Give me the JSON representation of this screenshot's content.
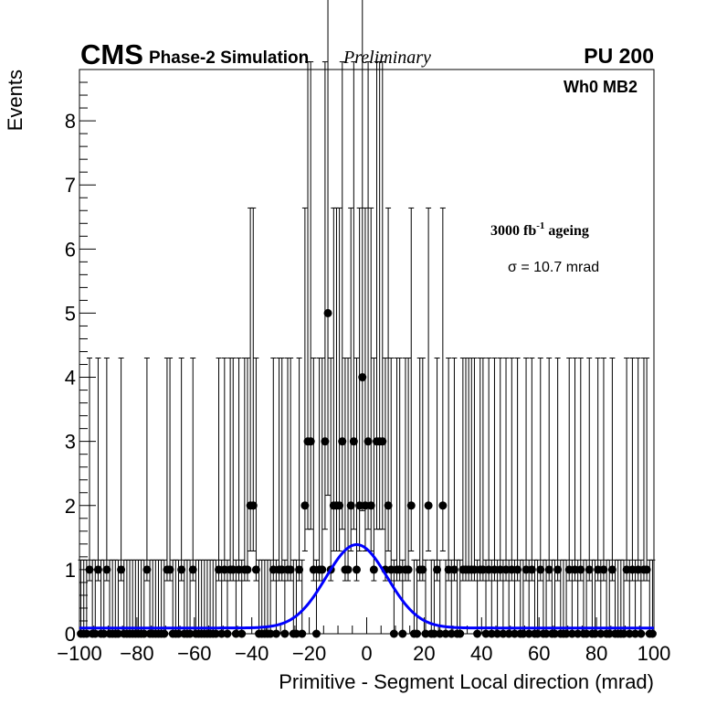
{
  "header": {
    "experiment": "CMS",
    "simulation_label": "Phase-2 Simulation",
    "status_label": "Preliminary",
    "pileup_label": "PU 200"
  },
  "chart_data": {
    "type": "scatter",
    "title": "",
    "xlabel": "Primitive - Segment Local direction (mrad)",
    "ylabel": "Events",
    "xlim": [
      -100,
      100
    ],
    "ylim": [
      0,
      8.8
    ],
    "x_ticks": [
      -100,
      -80,
      -60,
      -40,
      -20,
      0,
      20,
      40,
      60,
      80,
      100
    ],
    "y_ticks": [
      0,
      1,
      2,
      3,
      4,
      5,
      6,
      7,
      8
    ],
    "grid": false,
    "legend": "none",
    "annotations": {
      "chamber": "Wh0 MB2",
      "ageing": "3000 fb",
      "ageing_exponent": "-1",
      "ageing_suffix": " ageing",
      "sigma": "σ = 10.7 mrad"
    },
    "bin_width": 1,
    "nonzero_bins": [
      {
        "x": -40.5,
        "y": 2
      },
      {
        "x": -39.5,
        "y": 2
      },
      {
        "x": -21.5,
        "y": 2
      },
      {
        "x": -20.5,
        "y": 3
      },
      {
        "x": -19.5,
        "y": 3
      },
      {
        "x": -14.5,
        "y": 3
      },
      {
        "x": -13.5,
        "y": 5
      },
      {
        "x": -11.5,
        "y": 2
      },
      {
        "x": -10.5,
        "y": 2
      },
      {
        "x": -9.5,
        "y": 2
      },
      {
        "x": -8.5,
        "y": 3
      },
      {
        "x": -5.5,
        "y": 2
      },
      {
        "x": -4.5,
        "y": 3
      },
      {
        "x": -2.5,
        "y": 2
      },
      {
        "x": -1.5,
        "y": 4
      },
      {
        "x": -0.5,
        "y": 2
      },
      {
        "x": 0.5,
        "y": 3
      },
      {
        "x": 1.5,
        "y": 2
      },
      {
        "x": 3.5,
        "y": 3
      },
      {
        "x": 4.5,
        "y": 3
      },
      {
        "x": 5.5,
        "y": 3
      },
      {
        "x": 7.5,
        "y": 2
      },
      {
        "x": 15.5,
        "y": 2
      },
      {
        "x": 21.5,
        "y": 2
      },
      {
        "x": 26.5,
        "y": 2
      }
    ],
    "unit_bins_with_errors": [
      -96.5,
      -93.5,
      -90.5,
      -85.5,
      -76.5,
      -69.5,
      -68.5,
      -64.5,
      -60.5,
      -51.5,
      -49.5,
      -47.5,
      -46.5,
      -44.5,
      -42.5,
      -41.5,
      -38.5,
      -32.5,
      -30.5,
      -29.5,
      -27.5,
      -26.5,
      -23.5,
      -18.5,
      -16.5,
      -15.5,
      -12.5,
      -7.5,
      -6.5,
      -3.5,
      2.5,
      6.5,
      8.5,
      10.5,
      11.5,
      13.5,
      14.5,
      18.5,
      19.5,
      24.5,
      28.5,
      30.5,
      33.5,
      34.5,
      35.5,
      36.5,
      37.5,
      39.5,
      40.5,
      42.5,
      44.5,
      46.5,
      48.5,
      50.5,
      52.5,
      55.5,
      57.5,
      60.5,
      63.5,
      66.5,
      70.5,
      72.5,
      74.5,
      77.5,
      80.5,
      82.5,
      85.5,
      90.5,
      92.5,
      94.5,
      96.5,
      97.5
    ],
    "error_bar": {
      "zero_upper": 1.15,
      "unit_lower": 0.173,
      "unit_upper": 3.3,
      "two_lower": 0.709,
      "two_upper": 4.64,
      "three_lower": 1.37,
      "three_upper": 5.92,
      "four_lower": 2.08,
      "four_upper": 7.16,
      "five_lower": 2.84,
      "five_upper": 8.38
    },
    "fit": {
      "name": "gaussian + constant",
      "mean": -3.5,
      "sigma": 10.7,
      "amplitude": 1.3,
      "baseline": 0.09,
      "color": "#0000ff"
    },
    "marker_color": "#000000"
  }
}
